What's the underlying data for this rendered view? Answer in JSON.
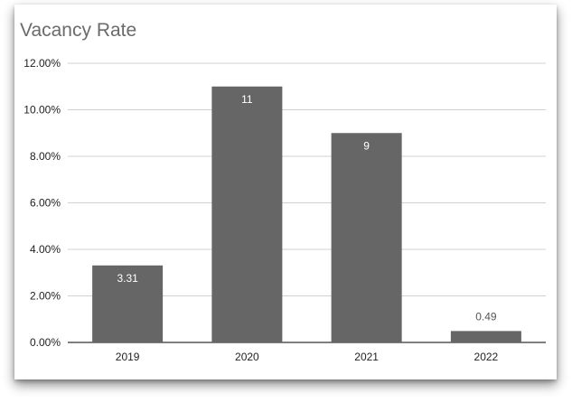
{
  "chart_data": {
    "type": "bar",
    "title": "Vacancy Rate",
    "xlabel": "",
    "ylabel": "",
    "categories": [
      "2019",
      "2020",
      "2021",
      "2022"
    ],
    "values": [
      3.31,
      11,
      9,
      0.49
    ],
    "data_labels": [
      "3.31",
      "11",
      "9",
      "0.49"
    ],
    "y_ticks": [
      "0.00%",
      "2.00%",
      "4.00%",
      "6.00%",
      "8.00%",
      "10.00%",
      "12.00%"
    ],
    "ylim": [
      0,
      12
    ],
    "grid": true,
    "legend": "none",
    "bar_color": "#666666"
  }
}
